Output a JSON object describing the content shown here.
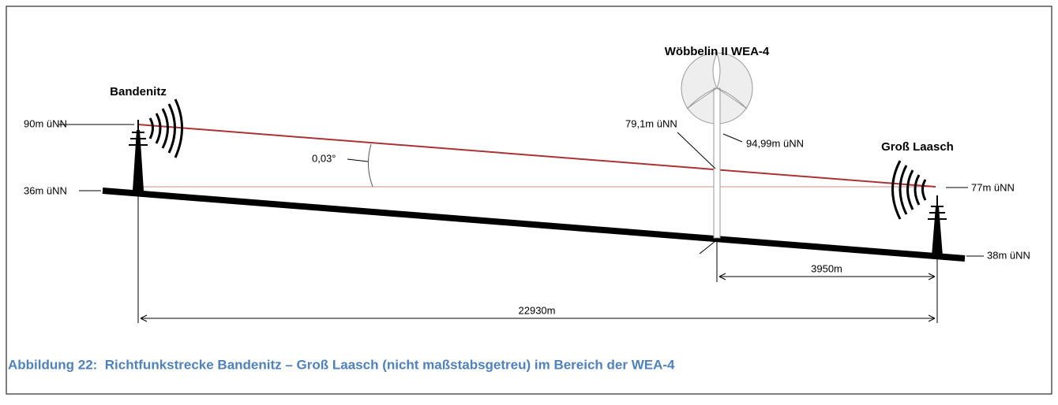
{
  "diagram": {
    "site_a": {
      "name": "Bandenitz",
      "antenna_height": "90m üNN",
      "ground_height": "36m üNN"
    },
    "site_b": {
      "name": "Groß Laasch",
      "antenna_height": "77m üNN",
      "ground_height": "38m üNN"
    },
    "turbine": {
      "name": "Wöbbelin II WEA-4",
      "beam_height": "79,1m üNN",
      "tip_height": "94,99m üNN"
    },
    "angle": "0,03°",
    "distance_turbine": "3950m",
    "distance_total": "22930m"
  },
  "caption": "Abbildung 22:  Richtfunkstrecke Bandenitz – Groß Laasch (nicht maßstabsgetreu) im Bereich der WEA-4"
}
